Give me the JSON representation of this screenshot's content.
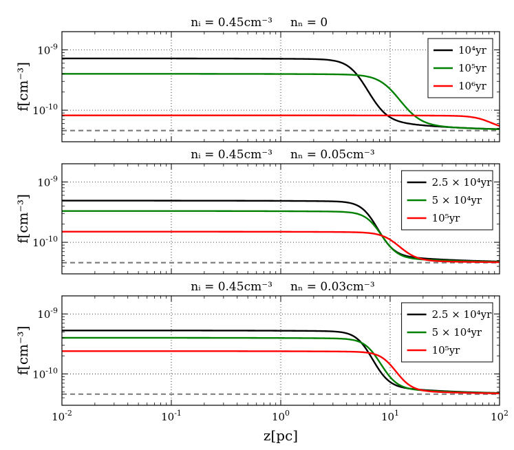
{
  "chart_data": {
    "type": "line",
    "x_scale": "log",
    "y_scale": "log",
    "xlim": [
      0.01,
      100
    ],
    "ylim": [
      3e-11,
      2e-09
    ],
    "x_ticks": [
      0.01,
      0.1,
      1,
      10,
      100
    ],
    "x_tick_labels": [
      {
        "base": "10",
        "exp": "-2"
      },
      {
        "base": "10",
        "exp": "-1"
      },
      {
        "base": "10",
        "exp": "0"
      },
      {
        "base": "10",
        "exp": "1"
      },
      {
        "base": "10",
        "exp": "2"
      }
    ],
    "y_ticks": [
      1e-10,
      1e-09
    ],
    "y_tick_labels": [
      {
        "base": "10",
        "exp": "-10"
      },
      {
        "base": "10",
        "exp": "-9"
      }
    ],
    "xlabel": "z[pc]",
    "ylabel": "f[cm⁻³]",
    "grid": true,
    "reference_line": {
      "y": 4.6e-11,
      "style": "dashed",
      "color": "#808080"
    },
    "panels": [
      {
        "title_left": "nᵢ = 0.45cm⁻³",
        "title_right": "nₙ = 0",
        "legend_position": "top-right",
        "series": [
          {
            "name": "10⁴yr",
            "color": "#000000",
            "plateau": 7.2e-10,
            "z_half": 5.0,
            "width": 0.08
          },
          {
            "name": "10⁵yr",
            "color": "#008000",
            "plateau": 4e-10,
            "z_half": 10.0,
            "width": 0.09
          },
          {
            "name": "10⁶yr",
            "color": "#ff0000",
            "plateau": 8.2e-11,
            "z_half": 80.0,
            "width": 0.08
          }
        ]
      },
      {
        "title_left": "nᵢ = 0.45cm⁻³",
        "title_right": "nₙ = 0.05cm⁻³",
        "legend_position": "top-right",
        "series": [
          {
            "name": "2.5 × 10⁴yr",
            "color": "#000000",
            "plateau": 4.9e-10,
            "z_half": 6.5,
            "width": 0.07
          },
          {
            "name": "5 × 10⁴yr",
            "color": "#008000",
            "plateau": 3.3e-10,
            "z_half": 7.2,
            "width": 0.07
          },
          {
            "name": "10⁵yr",
            "color": "#ff0000",
            "plateau": 1.5e-10,
            "z_half": 11.0,
            "width": 0.08
          }
        ]
      },
      {
        "title_left": "nᵢ = 0.45cm⁻³",
        "title_right": "nₙ = 0.03cm⁻³",
        "legend_position": "top-right",
        "series": [
          {
            "name": "2.5 × 10⁴yr",
            "color": "#000000",
            "plateau": 5.3e-10,
            "z_half": 5.8,
            "width": 0.07
          },
          {
            "name": "5 × 10⁴yr",
            "color": "#008000",
            "plateau": 4e-10,
            "z_half": 7.0,
            "width": 0.07
          },
          {
            "name": "10⁵yr",
            "color": "#ff0000",
            "plateau": 2.4e-10,
            "z_half": 10.0,
            "width": 0.07
          }
        ]
      }
    ]
  }
}
